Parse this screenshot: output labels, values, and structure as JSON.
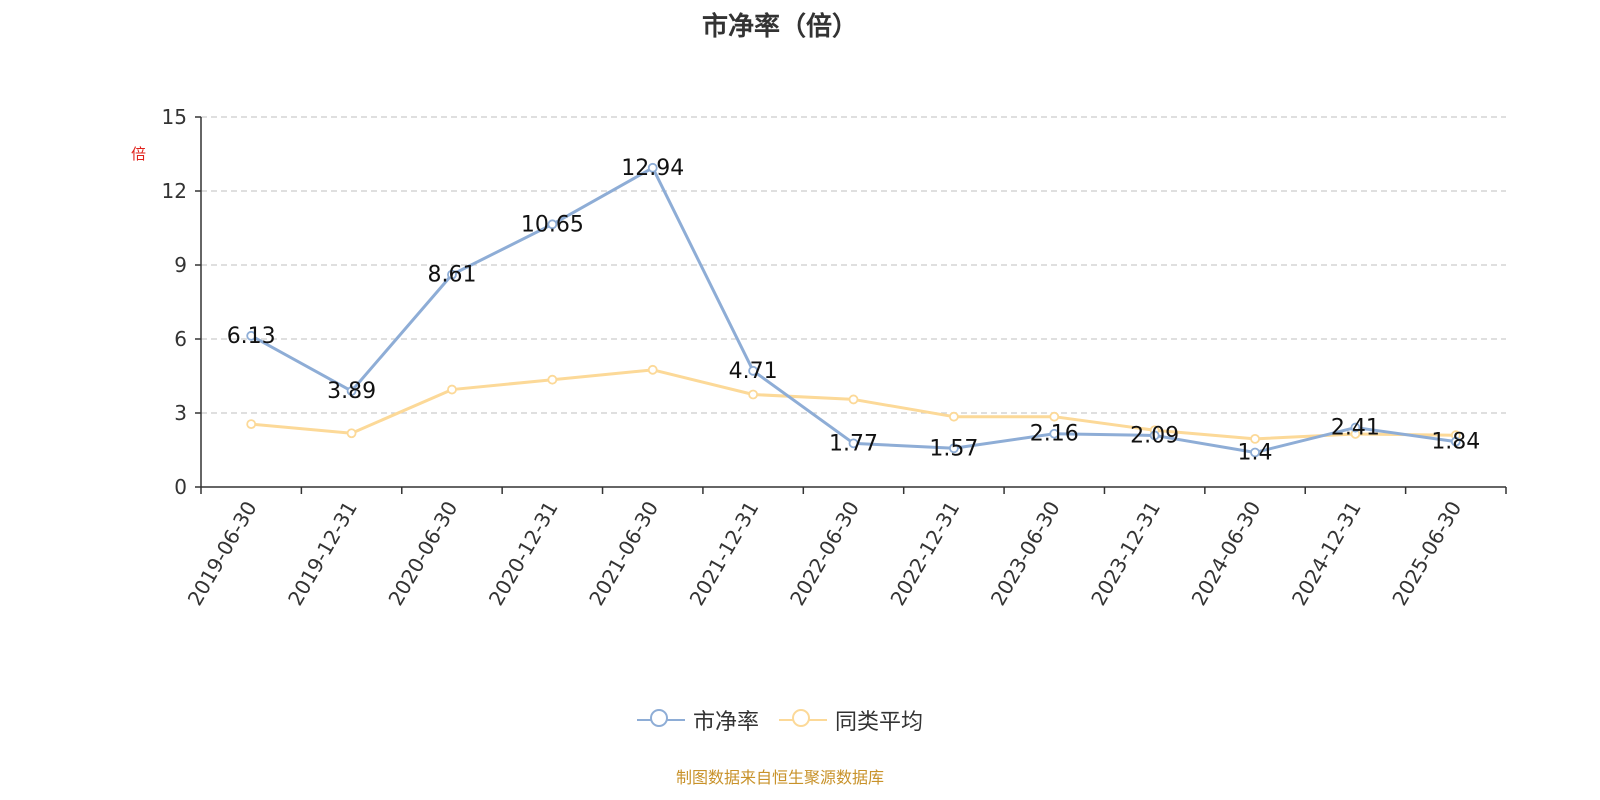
{
  "chart_data": {
    "type": "line",
    "title": "市净率（倍）",
    "ylabel": "倍",
    "ylim": [
      0,
      15
    ],
    "yticks": [
      0,
      3,
      6,
      9,
      12,
      15
    ],
    "grid": true,
    "legend_position": "bottom",
    "categories": [
      "2019-06-30",
      "2019-12-31",
      "2020-06-30",
      "2020-12-31",
      "2021-06-30",
      "2021-12-31",
      "2022-06-30",
      "2022-12-31",
      "2023-06-30",
      "2023-12-31",
      "2024-06-30",
      "2024-12-31",
      "2025-06-30"
    ],
    "series": [
      {
        "name": "市净率",
        "color": "#8eadd6",
        "values": [
          6.13,
          3.89,
          8.61,
          10.65,
          12.94,
          4.71,
          1.77,
          1.57,
          2.16,
          2.09,
          1.4,
          2.41,
          1.84
        ],
        "labels": [
          "6.13",
          "3.89",
          "8.61",
          "10.65",
          "12.94",
          "4.71",
          "1.77",
          "1.57",
          "2.16",
          "2.09",
          "1.4",
          "2.41",
          "1.84"
        ]
      },
      {
        "name": "同类平均",
        "color": "#fcd998",
        "values": [
          2.55,
          2.18,
          3.95,
          4.35,
          4.75,
          3.75,
          3.55,
          2.85,
          2.85,
          2.3,
          1.95,
          2.15,
          2.1
        ]
      }
    ],
    "source": "制图数据来自恒生聚源数据库",
    "ylabel_color": "#e0201a",
    "axis_color": "#333333",
    "grid_color": "#cccccc"
  }
}
